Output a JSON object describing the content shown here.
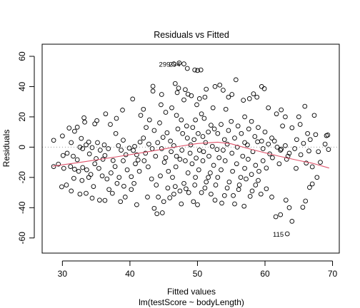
{
  "chart_data": {
    "type": "scatter",
    "title": "Residuals vs Fitted",
    "xlabel": "Fitted values",
    "subtitle": "lm(testScore ~ bodyLength)",
    "ylabel": "Residuals",
    "xlim": [
      27,
      71
    ],
    "ylim": [
      -70,
      68
    ],
    "xticks": [
      30,
      40,
      50,
      60,
      70
    ],
    "yticks": [
      -60,
      -40,
      -20,
      0,
      20,
      40,
      60
    ],
    "zero_line": 0,
    "smoother_color": "#DF536B",
    "point_color": "#000000",
    "smoother": [
      [
        28.6,
        -12.6
      ],
      [
        33,
        -9.8
      ],
      [
        38,
        -6.4
      ],
      [
        43,
        -2.8
      ],
      [
        47,
        0.3
      ],
      [
        50,
        2.4
      ],
      [
        53,
        3.3
      ],
      [
        55,
        2.2
      ],
      [
        58,
        -1.5
      ],
      [
        62,
        -5.9
      ],
      [
        65,
        -8.8
      ],
      [
        67,
        -10.6
      ],
      [
        69.5,
        -13.8
      ]
    ],
    "labeled_points": [
      {
        "label": "294",
        "x": 48.0,
        "y": 55.0
      },
      {
        "label": "299",
        "x": 46.5,
        "y": 55.0
      },
      {
        "label": "115",
        "x": 63.3,
        "y": -57.3
      }
    ],
    "points": [
      [
        46.5,
        55
      ],
      [
        47.3,
        55.6
      ],
      [
        48,
        55
      ],
      [
        49.6,
        51
      ],
      [
        50,
        50.6
      ],
      [
        43.4,
        40.2
      ],
      [
        43.4,
        37
      ],
      [
        42,
        25
      ],
      [
        40.4,
        31.8
      ],
      [
        44.7,
        34.8
      ],
      [
        48.5,
        52
      ],
      [
        50.5,
        51
      ],
      [
        46.7,
        42
      ],
      [
        47.2,
        39
      ],
      [
        47,
        36
      ],
      [
        48.2,
        38
      ],
      [
        48.6,
        35
      ],
      [
        48,
        31.2
      ],
      [
        49.1,
        34
      ],
      [
        49.9,
        28
      ],
      [
        50.3,
        32
      ],
      [
        51.1,
        33
      ],
      [
        51.3,
        38.3
      ],
      [
        52.6,
        40
      ],
      [
        53.3,
        41
      ],
      [
        53.8,
        37.6
      ],
      [
        54.6,
        33
      ],
      [
        55.1,
        34.8
      ],
      [
        55.7,
        44.5
      ],
      [
        56.8,
        31
      ],
      [
        57.7,
        32
      ],
      [
        58.3,
        35.2
      ],
      [
        59.5,
        40
      ],
      [
        59.9,
        38.6
      ],
      [
        58.8,
        33
      ],
      [
        60.5,
        26
      ],
      [
        61.7,
        22
      ],
      [
        62.4,
        24.6
      ],
      [
        63,
        20
      ],
      [
        65.9,
        27
      ],
      [
        65,
        20
      ],
      [
        67.3,
        21
      ],
      [
        62.6,
        14
      ],
      [
        64,
        12.8
      ],
      [
        65.2,
        15
      ],
      [
        66.3,
        9
      ],
      [
        67.5,
        8.3
      ],
      [
        69.3,
        8
      ],
      [
        69.1,
        7.6
      ],
      [
        57,
        20
      ],
      [
        54.2,
        25
      ],
      [
        52.3,
        26
      ],
      [
        51,
        19
      ],
      [
        50.6,
        22
      ],
      [
        49.7,
        18
      ],
      [
        49.3,
        13
      ],
      [
        48.4,
        14
      ],
      [
        47.6,
        18
      ],
      [
        46.9,
        21
      ],
      [
        46.2,
        26
      ],
      [
        45.3,
        23
      ],
      [
        44.6,
        28
      ],
      [
        44.4,
        16
      ],
      [
        43.6,
        11
      ],
      [
        42.9,
        18
      ],
      [
        42.4,
        13
      ],
      [
        41.6,
        21
      ],
      [
        38.9,
        24.5
      ],
      [
        38,
        19
      ],
      [
        37.1,
        15
      ],
      [
        36.4,
        22
      ],
      [
        34.8,
        15.4
      ],
      [
        35.1,
        17.5
      ],
      [
        33.2,
        19.4
      ],
      [
        33.3,
        16.5
      ],
      [
        32.2,
        13.2
      ],
      [
        31.8,
        10.5
      ],
      [
        31,
        12.6
      ],
      [
        30,
        7.4
      ],
      [
        28.7,
        4.5
      ],
      [
        30.7,
        -4
      ],
      [
        31.6,
        -6
      ],
      [
        32.2,
        -8.3
      ],
      [
        32.6,
        0
      ],
      [
        33,
        -1
      ],
      [
        33.5,
        1.5
      ],
      [
        34,
        -4.5
      ],
      [
        35.2,
        3
      ],
      [
        35.6,
        -2
      ],
      [
        36.3,
        -5.5
      ],
      [
        36.8,
        -1
      ],
      [
        37.9,
        9
      ],
      [
        38.3,
        1
      ],
      [
        39,
        4.6
      ],
      [
        39.9,
        -0.6
      ],
      [
        40.5,
        -2.2
      ],
      [
        41,
        -5
      ],
      [
        41.5,
        3.4
      ],
      [
        42,
        6
      ],
      [
        42.8,
        2
      ],
      [
        43.3,
        -1
      ],
      [
        44.1,
        3
      ],
      [
        44.9,
        6.5
      ],
      [
        45.5,
        9.5
      ],
      [
        46,
        4
      ],
      [
        46.5,
        1
      ],
      [
        47.1,
        12
      ],
      [
        47.8,
        9
      ],
      [
        48.5,
        6
      ],
      [
        49,
        1.5
      ],
      [
        49.5,
        5
      ],
      [
        50.1,
        9
      ],
      [
        50.8,
        7
      ],
      [
        51.2,
        3
      ],
      [
        51.6,
        10
      ],
      [
        52,
        14.5
      ],
      [
        52.5,
        12
      ],
      [
        53,
        9
      ],
      [
        53.5,
        15
      ],
      [
        54,
        5
      ],
      [
        54.6,
        11
      ],
      [
        55,
        17
      ],
      [
        55.5,
        6
      ],
      [
        56,
        14
      ],
      [
        56.5,
        9
      ],
      [
        57,
        3
      ],
      [
        57.6,
        12
      ],
      [
        58,
        17
      ],
      [
        58.5,
        7
      ],
      [
        59,
        13
      ],
      [
        59.5,
        4
      ],
      [
        60,
        10
      ],
      [
        60.5,
        2
      ],
      [
        61,
        6
      ],
      [
        61.8,
        0
      ],
      [
        62.3,
        -2
      ],
      [
        63,
        1
      ],
      [
        63.6,
        -4
      ],
      [
        64.4,
        -1
      ],
      [
        65.3,
        -5
      ],
      [
        66.5,
        -2.5
      ],
      [
        67.9,
        -3
      ],
      [
        69.4,
        -1.5
      ],
      [
        68.2,
        -10
      ],
      [
        67,
        -13
      ],
      [
        66.1,
        -10.5
      ],
      [
        64.6,
        -14
      ],
      [
        63.2,
        -8
      ],
      [
        62.1,
        -11
      ],
      [
        61.1,
        -7
      ],
      [
        60.2,
        -13.8
      ],
      [
        59.7,
        -9
      ],
      [
        59.1,
        -16
      ],
      [
        58.6,
        -12
      ],
      [
        58,
        -18
      ],
      [
        57.5,
        -8
      ],
      [
        57,
        -14
      ],
      [
        56.4,
        -20
      ],
      [
        55.8,
        -11
      ],
      [
        55.2,
        -16
      ],
      [
        54.7,
        -23
      ],
      [
        54.1,
        -9
      ],
      [
        53.5,
        -15
      ],
      [
        53,
        -20
      ],
      [
        52.4,
        -12
      ],
      [
        51.9,
        -17
      ],
      [
        51.3,
        -23
      ],
      [
        50.8,
        -9
      ],
      [
        50.2,
        -15
      ],
      [
        49.7,
        -20
      ],
      [
        49.2,
        -11
      ],
      [
        48.6,
        -17
      ],
      [
        48,
        -24
      ],
      [
        47.4,
        -8
      ],
      [
        46.8,
        -13
      ],
      [
        46.3,
        -20
      ],
      [
        45.7,
        -16
      ],
      [
        45.1,
        -10
      ],
      [
        44.5,
        -19
      ],
      [
        43.9,
        -25
      ],
      [
        43.2,
        -21
      ],
      [
        42.7,
        -13
      ],
      [
        42.1,
        -9
      ],
      [
        41.4,
        -16
      ],
      [
        40.8,
        -11
      ],
      [
        40.2,
        -19.5
      ],
      [
        39.6,
        -15
      ],
      [
        39,
        -9
      ],
      [
        38.4,
        -20
      ],
      [
        37.8,
        -12.8
      ],
      [
        37.2,
        -17
      ],
      [
        36.6,
        -21
      ],
      [
        36,
        -8
      ],
      [
        35.4,
        -14
      ],
      [
        34.8,
        -11
      ],
      [
        34.2,
        -18
      ],
      [
        33.6,
        -15
      ],
      [
        33,
        -13.5
      ],
      [
        32.4,
        -16
      ],
      [
        31.8,
        -14.6
      ],
      [
        31.2,
        -12.8
      ],
      [
        30.2,
        -14
      ],
      [
        28.7,
        -12.8
      ],
      [
        30.6,
        -25
      ],
      [
        29.9,
        -26.2
      ],
      [
        31.3,
        -29
      ],
      [
        32.6,
        -31
      ],
      [
        33.5,
        -30.5
      ],
      [
        34.4,
        -33.7
      ],
      [
        35.5,
        -35
      ],
      [
        36.3,
        -35.2
      ],
      [
        37.4,
        -30.5
      ],
      [
        38.1,
        -24
      ],
      [
        39.1,
        -25.8
      ],
      [
        40.2,
        -28
      ],
      [
        41,
        -38
      ],
      [
        43.6,
        -40.4
      ],
      [
        44,
        -44
      ],
      [
        44.8,
        -43.4
      ],
      [
        45,
        -36
      ],
      [
        45.9,
        -33.5
      ],
      [
        46.5,
        -31
      ],
      [
        47.4,
        -29
      ],
      [
        48.3,
        -27.5
      ],
      [
        49.4,
        -36
      ],
      [
        50,
        -38
      ],
      [
        51.1,
        -27
      ],
      [
        52,
        -31
      ],
      [
        52.7,
        -25
      ],
      [
        53.6,
        -37
      ],
      [
        54.4,
        -27
      ],
      [
        55.3,
        -32
      ],
      [
        56.1,
        -28
      ],
      [
        56.9,
        -39
      ],
      [
        57.8,
        -32.5
      ],
      [
        58.6,
        -25
      ],
      [
        59.4,
        -31
      ],
      [
        60.2,
        -27.5
      ],
      [
        61,
        -33
      ],
      [
        61.6,
        -46
      ],
      [
        62.3,
        -44.6
      ],
      [
        63.1,
        -35
      ],
      [
        63.6,
        -40
      ],
      [
        64,
        -49
      ],
      [
        63.3,
        -57.3
      ],
      [
        65.6,
        -39.7
      ],
      [
        66,
        -35.6
      ],
      [
        66.6,
        -26.6
      ],
      [
        67,
        -24.3
      ],
      [
        67.7,
        -20
      ],
      [
        59,
        -22
      ],
      [
        58.1,
        -29
      ],
      [
        57.2,
        -21
      ],
      [
        56.2,
        -25
      ],
      [
        55.5,
        -37.5
      ],
      [
        54,
        -32
      ],
      [
        52.6,
        -35
      ],
      [
        51.6,
        -20
      ],
      [
        50.6,
        -30
      ],
      [
        49.6,
        -25
      ],
      [
        48.7,
        -30
      ],
      [
        47.6,
        -37.5
      ],
      [
        46.7,
        -26
      ],
      [
        45.6,
        -27
      ],
      [
        44.2,
        -33
      ],
      [
        42.6,
        -33
      ],
      [
        40.6,
        -24
      ],
      [
        39.3,
        -33
      ],
      [
        38.6,
        -36
      ],
      [
        36.9,
        -28
      ],
      [
        35.9,
        -19
      ],
      [
        34.6,
        -26
      ],
      [
        33.9,
        -20
      ],
      [
        32.9,
        -22
      ],
      [
        31.7,
        -20.6
      ],
      [
        53.2,
        -7
      ],
      [
        53.8,
        -2
      ],
      [
        54.4,
        2
      ],
      [
        55.1,
        -4
      ],
      [
        55.9,
        0
      ],
      [
        56.7,
        -6
      ],
      [
        57.4,
        1.5
      ],
      [
        58.2,
        -3
      ],
      [
        58.9,
        3.5
      ],
      [
        59.7,
        -1
      ],
      [
        60.7,
        -4.5
      ],
      [
        61.4,
        4
      ],
      [
        62.4,
        -1.3
      ],
      [
        63.4,
        -6
      ],
      [
        64.7,
        5
      ],
      [
        65.7,
        2.5
      ],
      [
        66.7,
        5
      ],
      [
        68.9,
        2
      ],
      [
        50.9,
        -3
      ],
      [
        51.7,
        -6
      ],
      [
        52.2,
        0.5
      ],
      [
        52.9,
        -1.5
      ],
      [
        50.3,
        -2
      ],
      [
        49.8,
        -7.2
      ],
      [
        48.9,
        -4
      ],
      [
        48.2,
        -9
      ],
      [
        47.7,
        -2
      ],
      [
        46.9,
        -6
      ],
      [
        46.1,
        -3
      ],
      [
        45.3,
        -7
      ],
      [
        44.7,
        -1
      ],
      [
        43.8,
        -6
      ],
      [
        42.3,
        -4
      ],
      [
        41.2,
        -8.5
      ],
      [
        40.7,
        0.5
      ],
      [
        39.4,
        -5
      ],
      [
        38.7,
        -2
      ],
      [
        37.5,
        -8.8
      ],
      [
        36.2,
        1.5
      ],
      [
        35,
        -7.6
      ],
      [
        34.4,
        -0.3
      ],
      [
        33.9,
        3.4
      ],
      [
        32.8,
        5.8
      ],
      [
        31.3,
        3
      ],
      [
        30.1,
        -5.5
      ],
      [
        29.4,
        -11.2
      ]
    ]
  }
}
